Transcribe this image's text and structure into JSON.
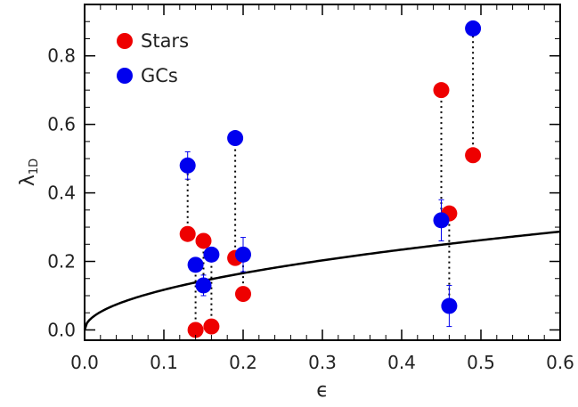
{
  "chart_data": {
    "type": "scatter",
    "xlabel": "ϵ",
    "ylabel_main": "λ",
    "ylabel_sub": "1D",
    "xlim": [
      0.0,
      0.6
    ],
    "ylim": [
      -0.03,
      0.95
    ],
    "x_ticks": [
      0.0,
      0.1,
      0.2,
      0.3,
      0.4,
      0.5,
      0.6
    ],
    "x_tick_labels": [
      "0.0",
      "0.1",
      "0.2",
      "0.3",
      "0.4",
      "0.5",
      "0.6"
    ],
    "y_ticks": [
      0.0,
      0.2,
      0.4,
      0.6,
      0.8
    ],
    "y_tick_labels": [
      "0.0",
      "0.2",
      "0.4",
      "0.6",
      "0.8"
    ],
    "legend_position": "top-left",
    "series": [
      {
        "name": "Stars",
        "color": "#ee0000",
        "points": [
          {
            "x": 0.13,
            "y": 0.28
          },
          {
            "x": 0.14,
            "y": 0.0
          },
          {
            "x": 0.15,
            "y": 0.26
          },
          {
            "x": 0.16,
            "y": 0.01
          },
          {
            "x": 0.19,
            "y": 0.21
          },
          {
            "x": 0.2,
            "y": 0.105
          },
          {
            "x": 0.45,
            "y": 0.7
          },
          {
            "x": 0.46,
            "y": 0.34
          },
          {
            "x": 0.49,
            "y": 0.51
          }
        ]
      },
      {
        "name": "GCs",
        "color": "#0000ee",
        "points": [
          {
            "x": 0.13,
            "y": 0.48,
            "err": 0.04
          },
          {
            "x": 0.14,
            "y": 0.19,
            "err": 0.02
          },
          {
            "x": 0.15,
            "y": 0.13,
            "err": 0.03
          },
          {
            "x": 0.16,
            "y": 0.22,
            "err": 0.02
          },
          {
            "x": 0.19,
            "y": 0.56,
            "err": 0.01
          },
          {
            "x": 0.2,
            "y": 0.22,
            "err": 0.05
          },
          {
            "x": 0.45,
            "y": 0.32,
            "err": 0.06
          },
          {
            "x": 0.46,
            "y": 0.07,
            "err": 0.06
          },
          {
            "x": 0.49,
            "y": 0.88,
            "err": 0.01
          }
        ]
      }
    ],
    "connectors": [
      [
        0.13,
        0.28,
        0.48
      ],
      [
        0.14,
        0.0,
        0.19
      ],
      [
        0.15,
        0.26,
        0.13
      ],
      [
        0.16,
        0.01,
        0.22
      ],
      [
        0.19,
        0.21,
        0.56
      ],
      [
        0.2,
        0.105,
        0.22
      ],
      [
        0.45,
        0.7,
        0.32
      ],
      [
        0.46,
        0.34,
        0.07
      ],
      [
        0.49,
        0.51,
        0.88
      ]
    ],
    "curve": {
      "formula": "0.31*sqrt(x)/sqrt(0.7)",
      "x_range": [
        0.0,
        0.6
      ]
    }
  }
}
